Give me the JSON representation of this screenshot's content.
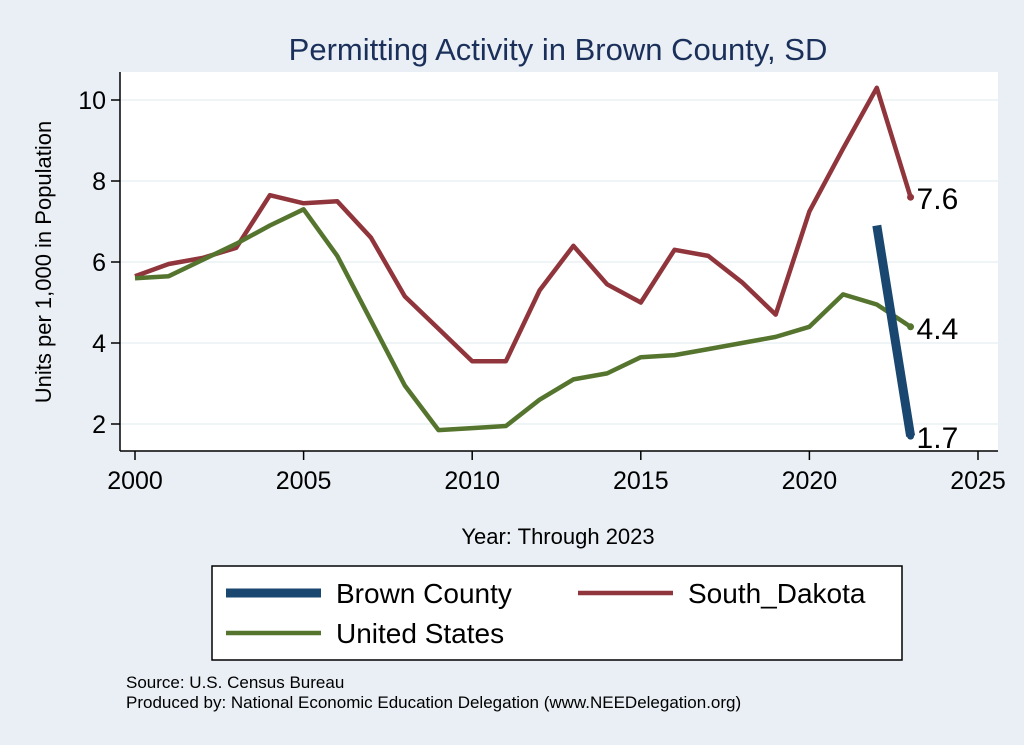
{
  "chart_data": {
    "type": "line",
    "title": "Permitting Activity in Brown County, SD",
    "xlabel": "Year: Through 2023",
    "ylabel": "Units per 1,000 in Population",
    "xlim": [
      2000,
      2025
    ],
    "ylim": [
      1.2,
      10.7
    ],
    "xticks": [
      2000,
      2005,
      2010,
      2015,
      2020,
      2025
    ],
    "yticks": [
      2,
      4,
      6,
      8,
      10
    ],
    "xtick_labels": [
      "2000",
      "2005",
      "2010",
      "2015",
      "2020",
      "2025"
    ],
    "ytick_labels": [
      "2",
      "4",
      "6",
      "8",
      "10"
    ],
    "grid": true,
    "series": [
      {
        "name": "Brown County",
        "color": "#1a476f",
        "x": [
          2022,
          2023
        ],
        "values": [
          6.9,
          1.7
        ],
        "end_label": "1.7"
      },
      {
        "name": "South_Dakota",
        "color": "#90353b",
        "x": [
          2000,
          2001,
          2002,
          2003,
          2004,
          2005,
          2006,
          2007,
          2008,
          2009,
          2010,
          2011,
          2012,
          2013,
          2014,
          2015,
          2016,
          2017,
          2018,
          2019,
          2020,
          2021,
          2022,
          2023
        ],
        "values": [
          5.65,
          5.95,
          6.1,
          6.35,
          7.65,
          7.45,
          7.5,
          6.6,
          5.15,
          4.35,
          3.55,
          3.55,
          5.3,
          6.4,
          5.45,
          5.0,
          6.3,
          6.15,
          5.5,
          4.7,
          7.25,
          8.8,
          10.3,
          7.6
        ],
        "end_label": "7.6"
      },
      {
        "name": "United States",
        "color": "#55752f",
        "x": [
          2000,
          2001,
          2002,
          2003,
          2004,
          2005,
          2006,
          2007,
          2008,
          2009,
          2010,
          2011,
          2012,
          2013,
          2014,
          2015,
          2016,
          2017,
          2018,
          2019,
          2020,
          2021,
          2022,
          2023
        ],
        "values": [
          5.6,
          5.65,
          6.05,
          6.45,
          6.9,
          7.3,
          6.15,
          4.55,
          2.95,
          1.85,
          1.9,
          1.95,
          2.6,
          3.1,
          3.25,
          3.65,
          3.7,
          3.85,
          4.0,
          4.15,
          4.4,
          5.2,
          4.95,
          4.4
        ],
        "end_label": "4.4"
      }
    ],
    "legend": {
      "placement": "bottom",
      "order": [
        "Brown County",
        "South_Dakota",
        "United States"
      ]
    }
  },
  "footer": {
    "source": "Source: U.S. Census Bureau",
    "produced": "Produced by: National Economic Education Delegation (www.NEEDelegation.org)"
  }
}
